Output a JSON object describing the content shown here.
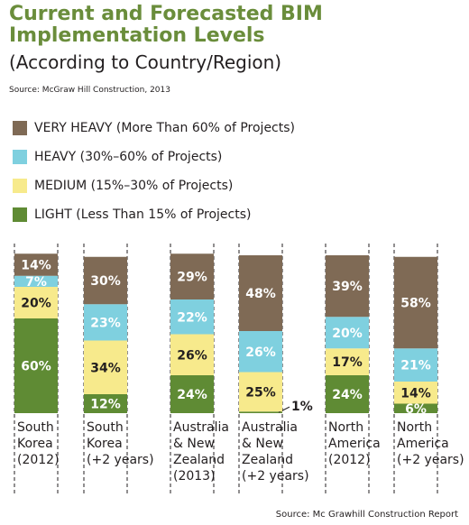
{
  "header": {
    "title_line1": "Current and Forecasted BIM",
    "title_line2": "Implementation Levels",
    "subtitle": "(According to Country/Region)",
    "source": "Source: McGraw Hill Construction, 2013"
  },
  "footer": {
    "source": "Source: Mc Grawhill Construction Report"
  },
  "chart_data": {
    "type": "bar",
    "stacked": true,
    "categories": [
      "South Korea (2012)",
      "South Korea (+2 years)",
      "Australia & New Zealand (2013)",
      "Australia & New Zealand (+2 years)",
      "North America (2012)",
      "North America (+2 years)"
    ],
    "category_lines": [
      [
        "South",
        "Korea",
        "(2012)"
      ],
      [
        "South",
        "Korea",
        "(+2 years)"
      ],
      [
        "Australia",
        "& New",
        "Zealand",
        "(2013)"
      ],
      [
        "Australia",
        "& New",
        "Zealand",
        "(+2 years)"
      ],
      [
        "North",
        "America",
        "(2012)"
      ],
      [
        "North",
        "America",
        "(+2 years)"
      ]
    ],
    "series": [
      {
        "name": "LIGHT (Less Than 15% of Projects)",
        "color": "#5f8b34",
        "values": [
          60,
          12,
          24,
          1,
          24,
          6
        ]
      },
      {
        "name": "MEDIUM (15%–30% of Projects)",
        "color": "#f7ea8c",
        "values": [
          20,
          34,
          26,
          25,
          17,
          14
        ]
      },
      {
        "name": "HEAVY (30%–60% of Projects)",
        "color": "#7fd0df",
        "values": [
          7,
          23,
          22,
          26,
          20,
          21
        ]
      },
      {
        "name": "VERY HEAVY (More Than 60% of Projects)",
        "color": "#7f6a55",
        "values": [
          14,
          30,
          29,
          48,
          39,
          58
        ]
      }
    ],
    "data_labels": [
      [
        "60%",
        "12%",
        "24%",
        "1%",
        "24%",
        "6%"
      ],
      [
        "20%",
        "34%",
        "26%",
        "25%",
        "17%",
        "14%"
      ],
      [
        "7%",
        "23%",
        "22%",
        "26%",
        "20%",
        "21%"
      ],
      [
        "14%",
        "30%",
        "29%",
        "48%",
        "39%",
        "58%"
      ]
    ],
    "legend_order": [
      3,
      2,
      1,
      0
    ],
    "legend_position": "top-left",
    "ylim": [
      0,
      100
    ],
    "grid": false,
    "xlabel": "",
    "ylabel": ""
  }
}
